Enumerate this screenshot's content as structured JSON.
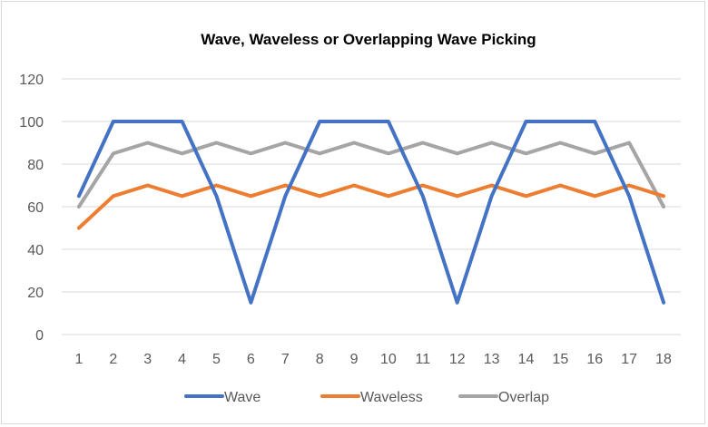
{
  "chart_data": {
    "type": "line",
    "title": "Wave, Waveless or Overlapping Wave Picking",
    "xlabel": "",
    "ylabel": "",
    "x": [
      1,
      2,
      3,
      4,
      5,
      6,
      7,
      8,
      9,
      10,
      11,
      12,
      13,
      14,
      15,
      16,
      17,
      18
    ],
    "ylim": [
      0,
      120
    ],
    "yticks": [
      0,
      20,
      40,
      60,
      80,
      100,
      120
    ],
    "grid": true,
    "legend_position": "bottom",
    "series": [
      {
        "name": "Wave",
        "color": "#4472C4",
        "values": [
          65,
          100,
          100,
          100,
          65,
          15,
          65,
          100,
          100,
          100,
          65,
          15,
          65,
          100,
          100,
          100,
          65,
          15
        ]
      },
      {
        "name": "Waveless",
        "color": "#ED7D31",
        "values": [
          50,
          65,
          70,
          65,
          70,
          65,
          70,
          65,
          70,
          65,
          70,
          65,
          70,
          65,
          70,
          65,
          70,
          65
        ]
      },
      {
        "name": "Overlap",
        "color": "#A5A5A5",
        "values": [
          60,
          85,
          90,
          85,
          90,
          85,
          90,
          85,
          90,
          85,
          90,
          85,
          90,
          85,
          90,
          85,
          90,
          60
        ]
      }
    ]
  }
}
